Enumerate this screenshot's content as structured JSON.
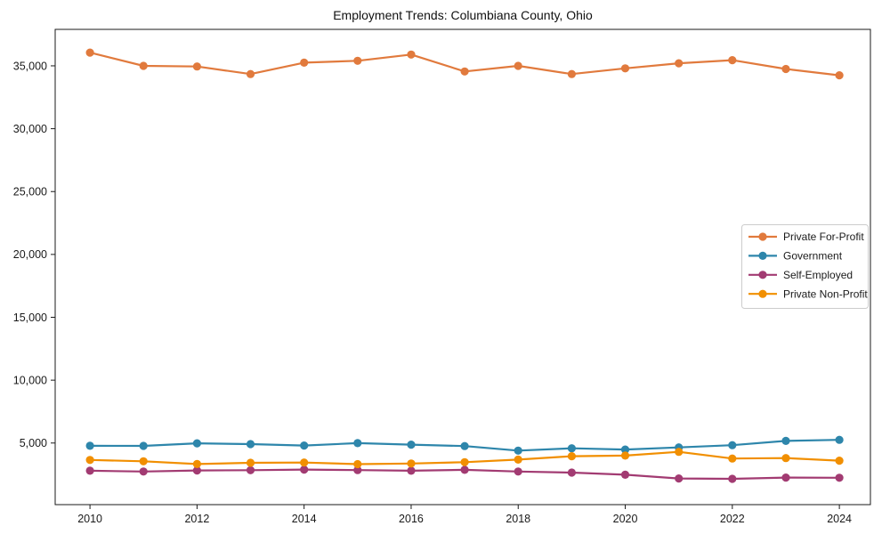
{
  "chart_data": {
    "type": "line",
    "title": "Employment Trends: Columbiana County, Ohio",
    "xlabel": "",
    "ylabel": "",
    "x": [
      2010,
      2011,
      2012,
      2013,
      2014,
      2015,
      2016,
      2017,
      2018,
      2019,
      2020,
      2021,
      2022,
      2023,
      2024
    ],
    "series": [
      {
        "name": "Private For-Profit",
        "color": "#E17A3D",
        "values": [
          36050,
          35000,
          34950,
          34350,
          35250,
          35400,
          35900,
          34550,
          35000,
          34350,
          34800,
          35200,
          35450,
          34750,
          34250
        ]
      },
      {
        "name": "Government",
        "color": "#2E86AB",
        "values": [
          4780,
          4770,
          4980,
          4910,
          4800,
          4990,
          4870,
          4760,
          4400,
          4580,
          4480,
          4650,
          4830,
          5170,
          5250
        ]
      },
      {
        "name": "Self-Employed",
        "color": "#A23B72",
        "values": [
          2800,
          2730,
          2820,
          2840,
          2890,
          2850,
          2800,
          2870,
          2730,
          2650,
          2480,
          2180,
          2150,
          2250,
          2240
        ]
      },
      {
        "name": "Private Non-Profit",
        "color": "#F18F01",
        "values": [
          3650,
          3550,
          3330,
          3430,
          3450,
          3320,
          3370,
          3480,
          3680,
          3950,
          4000,
          4300,
          3770,
          3800,
          3600
        ]
      }
    ],
    "xlim": [
      2009.35,
      2024.58
    ],
    "ylim": [
      100,
      37900
    ],
    "x_tick_values": [
      2010,
      2012,
      2014,
      2016,
      2018,
      2020,
      2022,
      2024
    ],
    "x_tick_labels": [
      "2010",
      "2012",
      "2014",
      "2016",
      "2018",
      "2020",
      "2022",
      "2024"
    ],
    "y_tick_values": [
      5000,
      10000,
      15000,
      20000,
      25000,
      30000,
      35000
    ],
    "y_tick_labels": [
      "5,000",
      "10,000",
      "15,000",
      "20,000",
      "25,000",
      "30,000",
      "35,000"
    ],
    "grid": false,
    "legend_position": "center right",
    "marker": "circle",
    "line_style": "solid"
  }
}
